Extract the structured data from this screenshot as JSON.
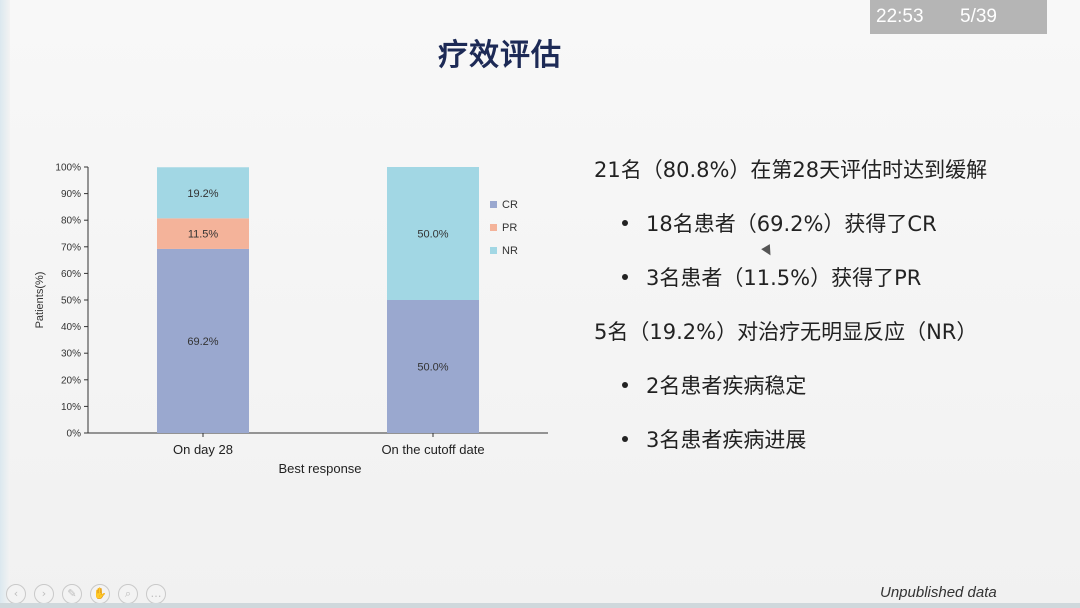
{
  "overlay": {
    "clock": "22:53",
    "page_counter": "5/39"
  },
  "slide": {
    "title": "疗效评估",
    "footnote": "Unpublished data",
    "bullets": [
      {
        "text": "21名（80.8%）在第28天评估时达到缓解",
        "level": 0
      },
      {
        "text": "18名患者（69.2%）获得了CR",
        "level": 1
      },
      {
        "text": "3名患者（11.5%）获得了PR",
        "level": 1
      },
      {
        "text": "5名（19.2%）对治疗无明显反应（NR）",
        "level": 0
      },
      {
        "text": "2名患者疾病稳定",
        "level": 1
      },
      {
        "text": "3名患者疾病进展",
        "level": 1
      }
    ]
  },
  "toolbar": {
    "icons": [
      "prev-icon",
      "next-icon",
      "pen-icon",
      "highlighter-icon",
      "zoom-icon",
      "more-icon"
    ],
    "glyphs": [
      "‹",
      "›",
      "✎",
      "✋",
      "⌕",
      "…"
    ]
  },
  "chart_data": {
    "type": "bar",
    "stacked": true,
    "categories": [
      "On day 28",
      "On the cutoff date"
    ],
    "series": [
      {
        "name": "CR",
        "values": [
          69.2,
          50.0
        ],
        "labels": [
          "69.2%",
          "50.0%"
        ],
        "color": "#9aa8cf"
      },
      {
        "name": "PR",
        "values": [
          11.5,
          0
        ],
        "labels": [
          "11.5%",
          ""
        ],
        "color": "#f4b39a"
      },
      {
        "name": "NR",
        "values": [
          19.2,
          50.0
        ],
        "labels": [
          "19.2%",
          "50.0%"
        ],
        "color": "#a2d7e4"
      }
    ],
    "xlabel": "Best response",
    "ylabel": "Patients(%)",
    "ylim": [
      0,
      100
    ],
    "yticks": [
      "0%",
      "10%",
      "20%",
      "30%",
      "40%",
      "50%",
      "60%",
      "70%",
      "80%",
      "90%",
      "100%"
    ],
    "legend_position": "right",
    "grid": false
  }
}
